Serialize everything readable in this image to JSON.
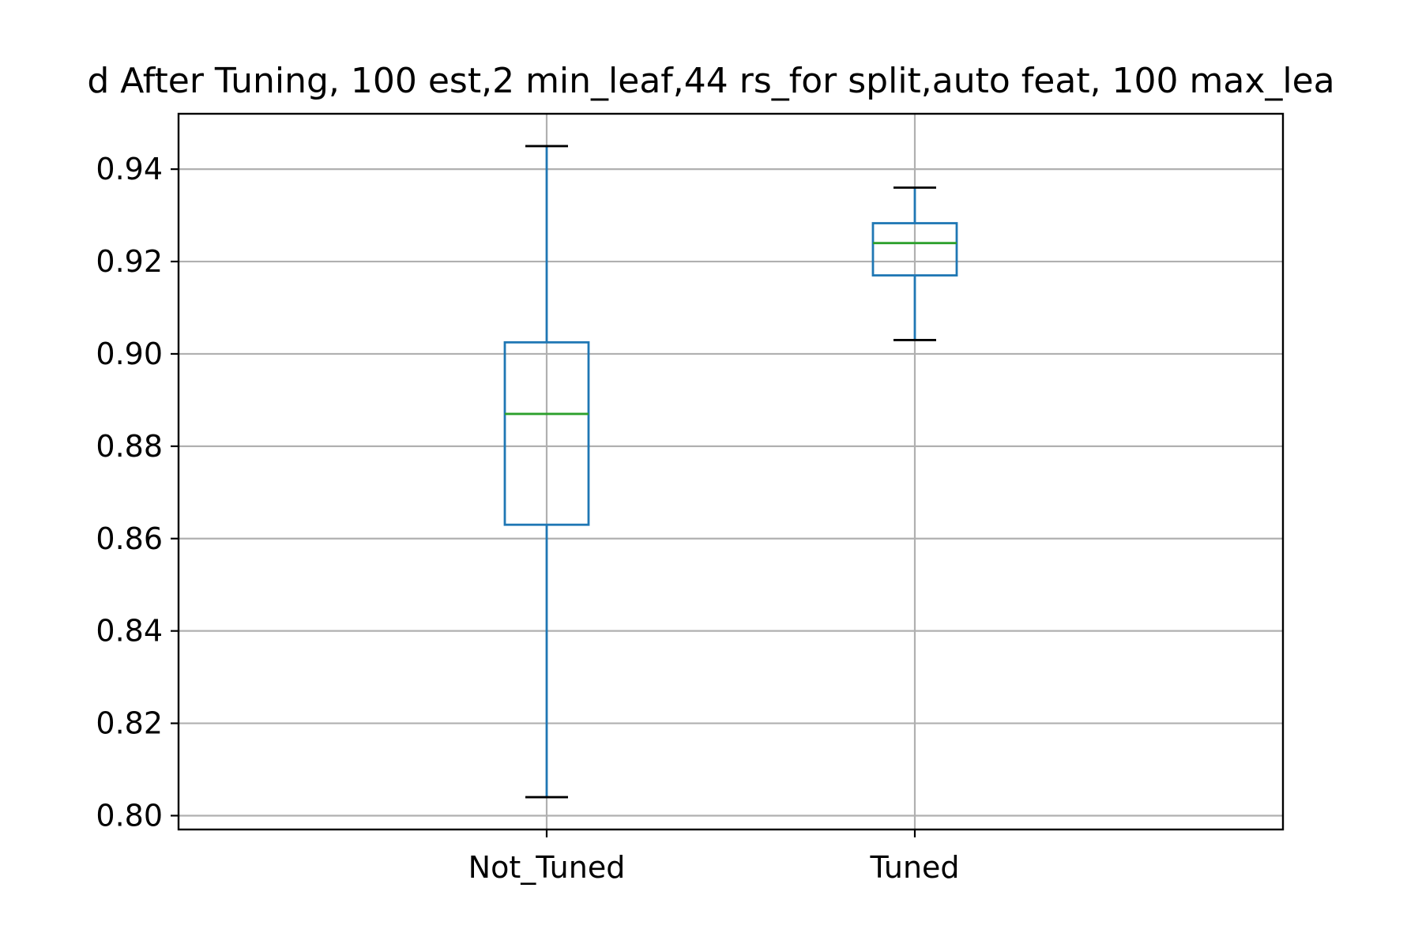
{
  "chart_data": {
    "type": "box",
    "title": "d After Tuning, 100 est,2 min_leaf,44 rs_for split,auto feat, 100 max_lea",
    "xlabel": "",
    "ylabel": "",
    "categories": [
      "Not_Tuned",
      "Tuned"
    ],
    "ylim": [
      0.797,
      0.952
    ],
    "yticks": [
      0.8,
      0.82,
      0.84,
      0.86,
      0.88,
      0.9,
      0.92,
      0.94
    ],
    "ytick_labels": [
      "0.80",
      "0.82",
      "0.84",
      "0.86",
      "0.88",
      "0.90",
      "0.92",
      "0.94"
    ],
    "grid": true,
    "boxes": [
      {
        "category": "Not_Tuned",
        "whisker_low": 0.804,
        "q1": 0.863,
        "median": 0.887,
        "q3": 0.9025,
        "whisker_high": 0.945
      },
      {
        "category": "Tuned",
        "whisker_low": 0.903,
        "q1": 0.917,
        "median": 0.924,
        "q3": 0.9283,
        "whisker_high": 0.936
      }
    ],
    "colors": {
      "box": "#1f77b4",
      "median": "#2ca02c",
      "cap": "#000000",
      "grid": "#b0b0b0",
      "axes": "#000000"
    }
  }
}
